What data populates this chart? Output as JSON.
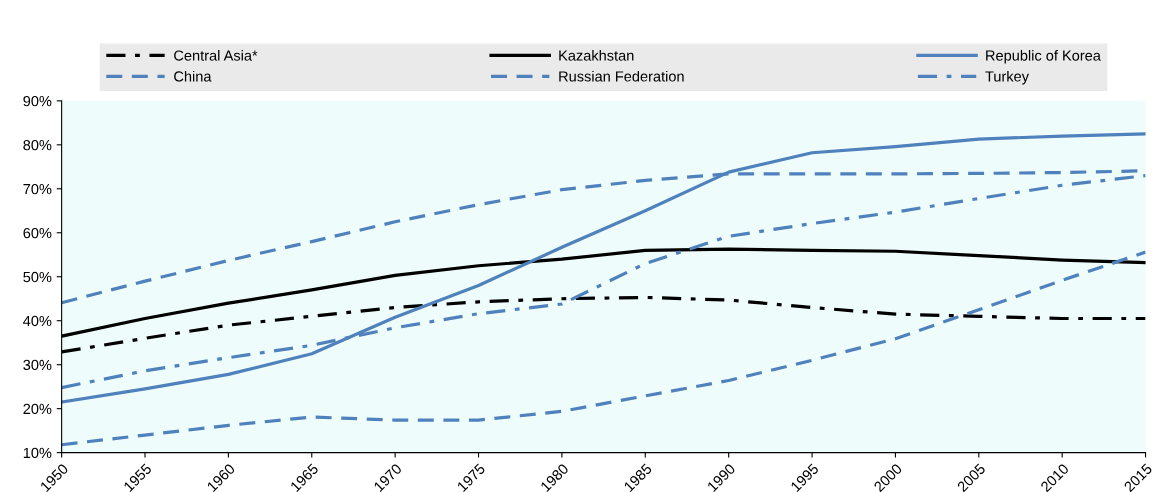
{
  "chart_data": {
    "type": "line",
    "x": [
      1950,
      1955,
      1960,
      1965,
      1970,
      1975,
      1980,
      1985,
      1990,
      1995,
      2000,
      2005,
      2010,
      2015
    ],
    "series": [
      {
        "name": "Central Asia*",
        "color": "#000000",
        "line_style": "dashdot",
        "values": [
          32.9,
          36,
          39,
          41,
          43,
          44.3,
          45,
          45.3,
          44.7,
          43,
          41.5,
          41,
          40.5,
          40.5
        ]
      },
      {
        "name": "Kazakhstan",
        "color": "#000000",
        "line_style": "solid",
        "values": [
          36.5,
          40.5,
          44,
          47,
          50.3,
          52.5,
          54,
          56,
          56.3,
          56,
          55.8,
          54.8,
          53.8,
          53.2
        ]
      },
      {
        "name": "Republic of Korea",
        "color": "#4f81bd",
        "line_style": "solid",
        "values": [
          21.5,
          24.5,
          27.8,
          32.5,
          40.8,
          48,
          56.7,
          65,
          73.8,
          78.2,
          79.6,
          81.3,
          82,
          82.5
        ]
      },
      {
        "name": "China",
        "color": "#4f81bd",
        "line_style": "dashed",
        "values": [
          11.8,
          14,
          16.2,
          18.1,
          17.4,
          17.4,
          19.4,
          22.9,
          26.4,
          31,
          35.9,
          42.5,
          49.2,
          55.6
        ]
      },
      {
        "name": "Russian Federation",
        "color": "#4f81bd",
        "line_style": "dashed",
        "values": [
          44.1,
          49,
          53.7,
          58,
          62.5,
          66.4,
          69.8,
          71.9,
          73.4,
          73.4,
          73.4,
          73.5,
          73.7,
          74.1
        ]
      },
      {
        "name": "Turkey",
        "color": "#4f81bd",
        "line_style": "dashdot",
        "values": [
          24.8,
          28.6,
          31.6,
          34.4,
          38.4,
          41.6,
          43.8,
          53,
          59.2,
          62.1,
          64.7,
          67.8,
          70.8,
          73
        ]
      }
    ],
    "xlim": [
      1950,
      2015
    ],
    "xticks": [
      1950,
      1955,
      1960,
      1965,
      1970,
      1975,
      1980,
      1985,
      1990,
      1995,
      2000,
      2005,
      2010,
      2015
    ],
    "ylim": [
      10,
      90
    ],
    "yticks": [
      {
        "value": 10,
        "label": "10%"
      },
      {
        "value": 20,
        "label": "20%"
      },
      {
        "value": 30,
        "label": "30%"
      },
      {
        "value": 40,
        "label": "40%"
      },
      {
        "value": 50,
        "label": "50%"
      },
      {
        "value": 60,
        "label": "60%"
      },
      {
        "value": 70,
        "label": "70%"
      },
      {
        "value": 80,
        "label": "80%"
      },
      {
        "value": 90,
        "label": "90%"
      }
    ],
    "grid": false,
    "legend": "top"
  }
}
